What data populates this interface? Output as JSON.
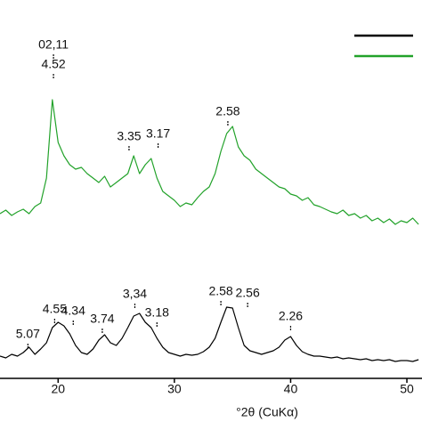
{
  "chart_data": {
    "type": "line",
    "x_label": "°2θ (CuKα)",
    "xlim": [
      15,
      51.3
    ],
    "xticks": [
      20,
      30,
      40,
      50
    ],
    "ylim": [
      0,
      425
    ],
    "x": [
      15,
      15.5,
      16,
      16.5,
      17,
      17.5,
      18,
      18.5,
      19,
      19.5,
      20,
      20.5,
      21,
      21.5,
      22,
      22.5,
      23,
      23.5,
      24,
      24.5,
      25,
      25.5,
      26,
      26.5,
      27,
      27.5,
      28,
      28.5,
      29,
      29.5,
      30,
      30.5,
      31,
      31.5,
      32,
      32.5,
      33,
      33.5,
      34,
      34.5,
      35,
      35.5,
      36,
      36.5,
      37,
      37.5,
      38,
      38.5,
      39,
      39.5,
      40,
      40.5,
      41,
      41.5,
      42,
      42.5,
      43,
      43.5,
      44,
      44.5,
      45,
      45.5,
      46,
      46.5,
      47,
      47.5,
      48,
      48.5,
      49,
      49.5,
      50,
      50.5,
      51
    ],
    "series": [
      {
        "color": "#000000",
        "values": [
          25,
          23,
          27,
          25,
          29,
          35,
          27,
          33,
          40,
          57,
          63,
          59,
          50,
          37,
          29,
          27,
          33,
          43,
          49,
          40,
          37,
          45,
          57,
          70,
          73,
          63,
          57,
          45,
          35,
          29,
          27,
          25,
          27,
          26,
          27,
          30,
          35,
          45,
          63,
          80,
          79,
          57,
          37,
          31,
          29,
          27,
          29,
          31,
          35,
          43,
          47,
          37,
          30,
          27,
          25,
          25,
          24,
          23,
          24,
          22,
          23,
          22,
          21,
          22,
          20,
          21,
          20,
          21,
          19,
          20,
          20,
          19,
          21
        ]
      },
      {
        "color": "#22a22a",
        "values": [
          185,
          189,
          183,
          187,
          190,
          185,
          193,
          197,
          225,
          313,
          265,
          250,
          240,
          235,
          237,
          230,
          225,
          220,
          227,
          215,
          220,
          225,
          230,
          250,
          230,
          240,
          247,
          225,
          210,
          205,
          200,
          193,
          197,
          195,
          203,
          210,
          215,
          230,
          255,
          275,
          283,
          260,
          250,
          245,
          235,
          230,
          225,
          220,
          215,
          213,
          207,
          205,
          200,
          203,
          195,
          193,
          190,
          187,
          185,
          189,
          183,
          185,
          180,
          183,
          177,
          180,
          175,
          179,
          173,
          177,
          175,
          180,
          173
        ]
      }
    ],
    "annotations": [
      {
        "text": "5.07",
        "x": 17.4,
        "y": 49
      },
      {
        "text": "4.55",
        "x": 19.7,
        "y": 77
      },
      {
        "text": "4.34",
        "x": 21.3,
        "y": 75
      },
      {
        "text": "3.74",
        "x": 23.8,
        "y": 66
      },
      {
        "text": "3,34",
        "x": 26.6,
        "y": 94
      },
      {
        "text": "3.18",
        "x": 28.5,
        "y": 73
      },
      {
        "text": "2.58",
        "x": 34.0,
        "y": 97
      },
      {
        "text": "2.56",
        "x": 36.3,
        "y": 95
      },
      {
        "text": "2.26",
        "x": 40.0,
        "y": 69
      },
      {
        "text": "02,11",
        "x": 19.6,
        "y": 374
      },
      {
        "text": "4.52",
        "x": 19.6,
        "y": 352
      },
      {
        "text": "3.35",
        "x": 26.1,
        "y": 271
      },
      {
        "text": "3.17",
        "x": 28.6,
        "y": 274
      },
      {
        "text": "2.58",
        "x": 34.6,
        "y": 299
      }
    ]
  }
}
